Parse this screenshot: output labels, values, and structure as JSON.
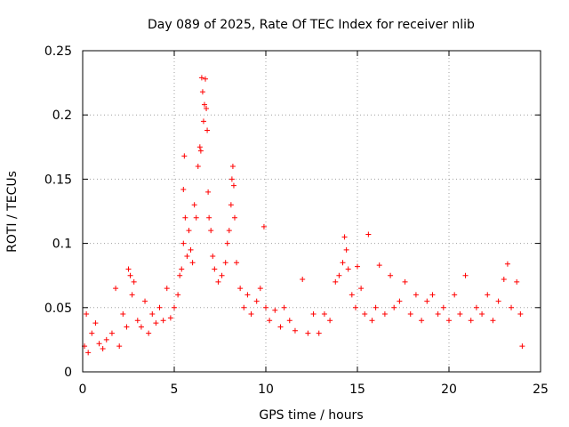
{
  "chart_data": {
    "type": "scatter",
    "title": "Day 089 of 2025, Rate Of TEC Index for receiver nlib",
    "xlabel": "GPS time / hours",
    "ylabel": "ROTI / TECUs",
    "xlim": [
      0,
      25
    ],
    "ylim": [
      0,
      0.25
    ],
    "x_ticks": [
      0,
      5,
      10,
      15,
      20,
      25
    ],
    "x_tick_labels": [
      "0",
      "5",
      "10",
      "15",
      "20",
      "25"
    ],
    "y_ticks": [
      0,
      0.05,
      0.1,
      0.15,
      0.2,
      0.25
    ],
    "y_tick_labels": [
      "0",
      "0.05",
      "0.1",
      "0.15",
      "0.2",
      "0.25"
    ],
    "grid": true,
    "marker": "+",
    "color": "#ff0000",
    "series": [
      {
        "name": "ROTI",
        "points": [
          [
            0.1,
            0.02
          ],
          [
            0.2,
            0.045
          ],
          [
            0.3,
            0.015
          ],
          [
            0.5,
            0.03
          ],
          [
            0.7,
            0.038
          ],
          [
            0.9,
            0.022
          ],
          [
            1.1,
            0.018
          ],
          [
            1.3,
            0.025
          ],
          [
            1.6,
            0.03
          ],
          [
            1.8,
            0.065
          ],
          [
            2.0,
            0.02
          ],
          [
            2.2,
            0.045
          ],
          [
            2.4,
            0.035
          ],
          [
            2.5,
            0.08
          ],
          [
            2.6,
            0.075
          ],
          [
            2.7,
            0.06
          ],
          [
            2.8,
            0.07
          ],
          [
            3.0,
            0.04
          ],
          [
            3.2,
            0.035
          ],
          [
            3.4,
            0.055
          ],
          [
            3.6,
            0.03
          ],
          [
            3.8,
            0.045
          ],
          [
            4.0,
            0.038
          ],
          [
            4.2,
            0.05
          ],
          [
            4.4,
            0.04
          ],
          [
            4.6,
            0.065
          ],
          [
            4.8,
            0.042
          ],
          [
            5.0,
            0.05
          ],
          [
            5.2,
            0.06
          ],
          [
            5.3,
            0.075
          ],
          [
            5.4,
            0.08
          ],
          [
            5.5,
            0.1
          ],
          [
            5.5,
            0.142
          ],
          [
            5.55,
            0.168
          ],
          [
            5.6,
            0.12
          ],
          [
            5.7,
            0.09
          ],
          [
            5.8,
            0.11
          ],
          [
            5.9,
            0.095
          ],
          [
            6.0,
            0.085
          ],
          [
            6.1,
            0.13
          ],
          [
            6.2,
            0.12
          ],
          [
            6.3,
            0.16
          ],
          [
            6.4,
            0.175
          ],
          [
            6.45,
            0.172
          ],
          [
            6.5,
            0.229
          ],
          [
            6.55,
            0.218
          ],
          [
            6.6,
            0.195
          ],
          [
            6.65,
            0.208
          ],
          [
            6.7,
            0.228
          ],
          [
            6.75,
            0.205
          ],
          [
            6.8,
            0.188
          ],
          [
            6.85,
            0.14
          ],
          [
            6.9,
            0.12
          ],
          [
            7.0,
            0.11
          ],
          [
            7.1,
            0.09
          ],
          [
            7.2,
            0.08
          ],
          [
            7.4,
            0.07
          ],
          [
            7.6,
            0.075
          ],
          [
            7.8,
            0.085
          ],
          [
            7.9,
            0.1
          ],
          [
            8.0,
            0.11
          ],
          [
            8.1,
            0.13
          ],
          [
            8.15,
            0.15
          ],
          [
            8.2,
            0.16
          ],
          [
            8.25,
            0.145
          ],
          [
            8.3,
            0.12
          ],
          [
            8.4,
            0.085
          ],
          [
            8.6,
            0.065
          ],
          [
            8.8,
            0.05
          ],
          [
            9.0,
            0.06
          ],
          [
            9.2,
            0.045
          ],
          [
            9.5,
            0.055
          ],
          [
            9.7,
            0.065
          ],
          [
            9.9,
            0.113
          ],
          [
            10.0,
            0.05
          ],
          [
            10.2,
            0.04
          ],
          [
            10.5,
            0.048
          ],
          [
            10.8,
            0.035
          ],
          [
            11.0,
            0.05
          ],
          [
            11.3,
            0.04
          ],
          [
            11.6,
            0.032
          ],
          [
            12.0,
            0.072
          ],
          [
            12.3,
            0.03
          ],
          [
            12.6,
            0.045
          ],
          [
            12.9,
            0.03
          ],
          [
            13.2,
            0.045
          ],
          [
            13.5,
            0.04
          ],
          [
            13.8,
            0.07
          ],
          [
            14.0,
            0.075
          ],
          [
            14.2,
            0.085
          ],
          [
            14.3,
            0.105
          ],
          [
            14.4,
            0.095
          ],
          [
            14.5,
            0.08
          ],
          [
            14.7,
            0.06
          ],
          [
            14.9,
            0.05
          ],
          [
            15.0,
            0.082
          ],
          [
            15.2,
            0.065
          ],
          [
            15.4,
            0.045
          ],
          [
            15.6,
            0.107
          ],
          [
            15.8,
            0.04
          ],
          [
            16.0,
            0.05
          ],
          [
            16.2,
            0.083
          ],
          [
            16.5,
            0.045
          ],
          [
            16.8,
            0.075
          ],
          [
            17.0,
            0.05
          ],
          [
            17.3,
            0.055
          ],
          [
            17.6,
            0.07
          ],
          [
            17.9,
            0.045
          ],
          [
            18.2,
            0.06
          ],
          [
            18.5,
            0.04
          ],
          [
            18.8,
            0.055
          ],
          [
            19.1,
            0.06
          ],
          [
            19.4,
            0.045
          ],
          [
            19.7,
            0.05
          ],
          [
            20.0,
            0.04
          ],
          [
            20.3,
            0.06
          ],
          [
            20.6,
            0.045
          ],
          [
            20.9,
            0.075
          ],
          [
            21.2,
            0.04
          ],
          [
            21.5,
            0.05
          ],
          [
            21.8,
            0.045
          ],
          [
            22.1,
            0.06
          ],
          [
            22.4,
            0.04
          ],
          [
            22.7,
            0.055
          ],
          [
            23.0,
            0.072
          ],
          [
            23.2,
            0.084
          ],
          [
            23.4,
            0.05
          ],
          [
            23.7,
            0.07
          ],
          [
            23.9,
            0.045
          ],
          [
            24.0,
            0.02
          ]
        ]
      }
    ]
  }
}
